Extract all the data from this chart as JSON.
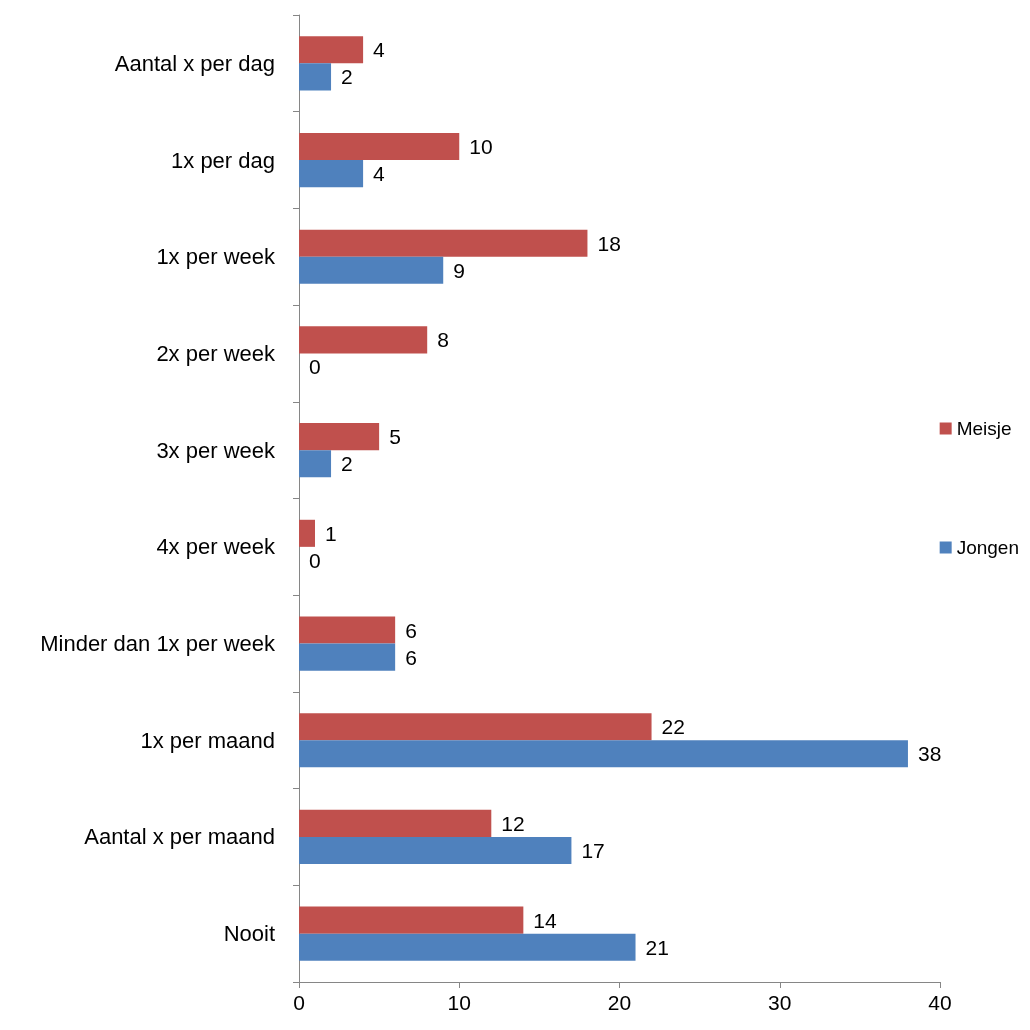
{
  "chart_data": {
    "type": "bar",
    "orientation": "horizontal",
    "categories": [
      "Aantal x per dag",
      "1x per dag",
      "1x per week",
      "2x per week",
      "3x per week",
      "4x per week",
      "Minder dan 1x per week",
      "1x per maand",
      "Aantal x per maand",
      "Nooit"
    ],
    "series": [
      {
        "name": "Meisje",
        "color": "#c0504d",
        "values": [
          4,
          10,
          18,
          8,
          5,
          1,
          6,
          22,
          12,
          14
        ]
      },
      {
        "name": "Jongen",
        "color": "#4f81bd",
        "values": [
          2,
          4,
          9,
          0,
          2,
          0,
          6,
          38,
          17,
          21
        ]
      }
    ],
    "xlim": [
      0,
      40
    ],
    "xticks": [
      0,
      10,
      20,
      30,
      40
    ],
    "data_labels": true,
    "legend": "right"
  }
}
